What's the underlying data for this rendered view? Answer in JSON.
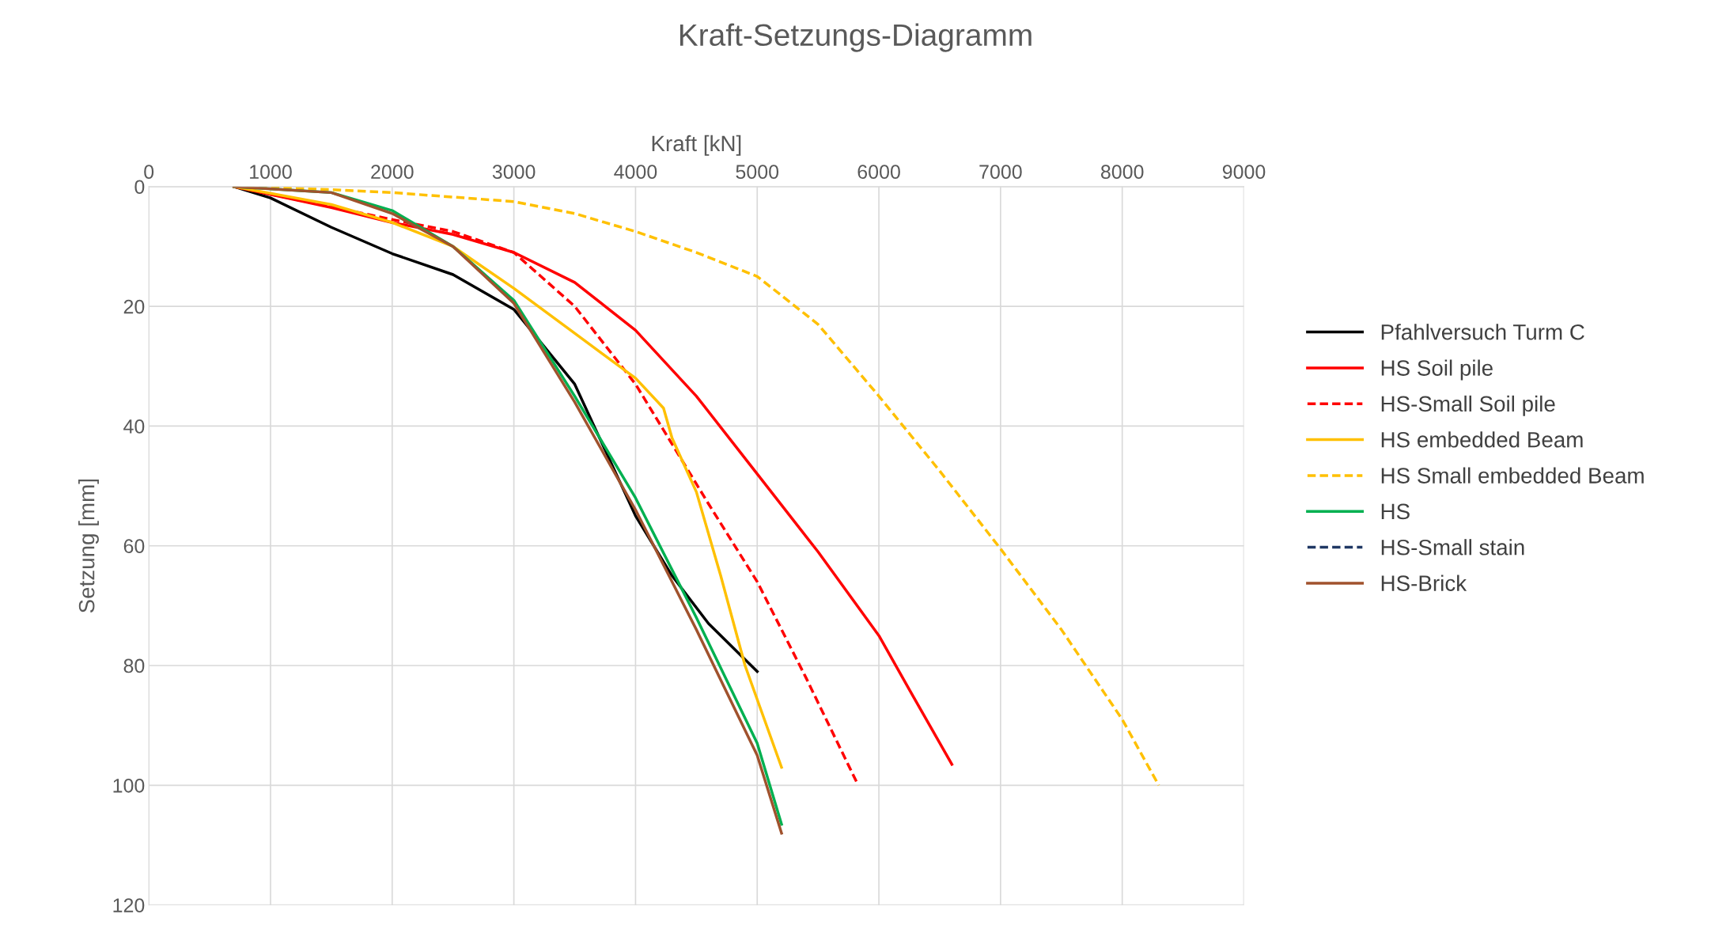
{
  "chart_data": {
    "type": "line",
    "title": "Kraft-Setzungs-Diagramm",
    "xlabel": "Kraft [kN]",
    "ylabel": "Setzung [mm]",
    "xlim": [
      0,
      9000
    ],
    "xticks": [
      0,
      1000,
      2000,
      3000,
      4000,
      5000,
      6000,
      7000,
      8000,
      9000
    ],
    "ylim": [
      120,
      0
    ],
    "yticks": [
      0,
      20,
      40,
      60,
      80,
      100,
      120
    ],
    "grid": true,
    "legend": "right",
    "marker": "none",
    "series": [
      {
        "name": "Pfahlversuch Turm C",
        "color": "#000000",
        "line_style": "solid",
        "x": [
          700,
          1000,
          1500,
          2000,
          2500,
          3000,
          3500,
          4000,
          4300,
          4600,
          5000
        ],
        "values": [
          0,
          1.9,
          6.8,
          11.2,
          14.7,
          20.5,
          33,
          55,
          65,
          73,
          81
        ]
      },
      {
        "name": "HS Soil pile",
        "color": "#ff0000",
        "line_style": "solid",
        "x": [
          700,
          1500,
          2000,
          2500,
          3000,
          3500,
          4000,
          4500,
          5000,
          5500,
          6000,
          6250,
          6600
        ],
        "values": [
          0,
          3.5,
          6,
          8,
          11,
          16,
          24,
          35,
          48,
          61,
          75,
          84,
          96.5
        ]
      },
      {
        "name": "HS-Small Soil pile",
        "color": "#ff0000",
        "line_style": "dashed",
        "x": [
          700,
          2000,
          2500,
          3000,
          3500,
          4000,
          4300,
          4600,
          5000,
          5400,
          5830
        ],
        "values": [
          0,
          5.5,
          7.5,
          11,
          20,
          33,
          43,
          53,
          66,
          82,
          100
        ]
      },
      {
        "name": "HS embedded Beam",
        "color": "#ffc000",
        "line_style": "solid",
        "x": [
          700,
          1500,
          2000,
          2500,
          3000,
          3500,
          4000,
          4230,
          4300,
          4500,
          4700,
          4900,
          5200
        ],
        "values": [
          0,
          3,
          6,
          10,
          17,
          24.5,
          32,
          37,
          42,
          51,
          65,
          80,
          97
        ]
      },
      {
        "name": "HS Small embedded Beam",
        "color": "#ffc000",
        "line_style": "dashed",
        "x": [
          700,
          1500,
          2000,
          3000,
          3500,
          4000,
          4500,
          5000,
          5500,
          6000,
          6500,
          7000,
          7500,
          8000,
          8300
        ],
        "values": [
          0,
          0.5,
          1,
          2.5,
          4.5,
          7.5,
          11,
          15,
          23,
          35,
          47.5,
          60.5,
          74,
          89,
          100
        ]
      },
      {
        "name": "HS",
        "color": "#00b050",
        "line_style": "solid",
        "x": [
          700,
          1500,
          2000,
          2500,
          3000,
          3500,
          4000,
          4500,
          5000,
          5200
        ],
        "values": [
          0,
          1,
          4,
          10,
          19,
          35,
          52,
          72,
          93,
          106.5
        ]
      },
      {
        "name": "HS-Small stain",
        "color": "#203864",
        "line_style": "dashed"
      },
      {
        "name": "HS-Brick",
        "color": "#a0522d",
        "line_style": "solid",
        "x": [
          700,
          1500,
          2000,
          2500,
          3000,
          3500,
          4000,
          4500,
          5000,
          5200
        ],
        "values": [
          0,
          1,
          4.5,
          10,
          19.5,
          36,
          54,
          74,
          95,
          108
        ]
      }
    ]
  }
}
